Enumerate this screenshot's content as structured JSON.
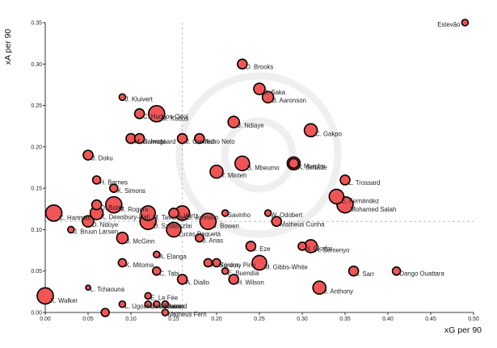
{
  "chart_data": {
    "type": "scatter",
    "title": "",
    "xlabel": "xG per 90",
    "ylabel": "xA per 90",
    "xlim": [
      0,
      0.5
    ],
    "ylim": [
      0,
      0.35
    ],
    "x_ticks": [
      "0.00",
      "0.05",
      "0.10",
      "0.15",
      "0.20",
      "0.25",
      "0.30",
      "0.35",
      "0.40",
      "0.45",
      "0.50"
    ],
    "y_ticks": [
      "0.00",
      "0.05",
      "0.10",
      "0.15",
      "0.20",
      "0.25",
      "0.30",
      "0.35"
    ],
    "reference_lines": {
      "x": 0.16,
      "y": 0.11
    },
    "colors": {
      "marker_fill": "#f05555",
      "marker_edge": "#000000",
      "reference_line": "#b5b5b5",
      "watermark": "#efefef"
    },
    "points": [
      {
        "name": "Estevão",
        "x": 0.49,
        "y": 0.35,
        "size": 4
      },
      {
        "name": "D. Brooks",
        "x": 0.23,
        "y": 0.3,
        "size": 6
      },
      {
        "name": "B. Saka",
        "x": 0.25,
        "y": 0.27,
        "size": 7
      },
      {
        "name": "B. Aaronson",
        "x": 0.26,
        "y": 0.26,
        "size": 7
      },
      {
        "name": "J. Kluivert",
        "x": 0.09,
        "y": 0.26,
        "size": 4
      },
      {
        "name": "C. Hudson-Odoi",
        "x": 0.11,
        "y": 0.24,
        "size": 6
      },
      {
        "name": "M. Kudus",
        "x": 0.13,
        "y": 0.24,
        "size": 10
      },
      {
        "name": "J. Ndiaye",
        "x": 0.22,
        "y": 0.23,
        "size": 7
      },
      {
        "name": "C. Gakpo",
        "x": 0.31,
        "y": 0.22,
        "size": 8
      },
      {
        "name": "M. Damsgaard",
        "x": 0.1,
        "y": 0.21,
        "size": 6
      },
      {
        "name": "A. Iwobi",
        "x": 0.11,
        "y": 0.21,
        "size": 6
      },
      {
        "name": "J. Grealish",
        "x": 0.16,
        "y": 0.21,
        "size": 6
      },
      {
        "name": "Pedro Neto",
        "x": 0.18,
        "y": 0.21,
        "size": 6
      },
      {
        "name": "J. Doku",
        "x": 0.05,
        "y": 0.19,
        "size": 6
      },
      {
        "name": "J. Murphy",
        "x": 0.29,
        "y": 0.18,
        "size": 6
      },
      {
        "name": "B. Mbeumo",
        "x": 0.23,
        "y": 0.18,
        "size": 9
      },
      {
        "name": "K. Schade",
        "x": 0.29,
        "y": 0.18,
        "size": 8
      },
      {
        "name": "Y. Minteh",
        "x": 0.2,
        "y": 0.17,
        "size": 8
      },
      {
        "name": "H. Barnes",
        "x": 0.06,
        "y": 0.16,
        "size": 5
      },
      {
        "name": "L. Trossard",
        "x": 0.35,
        "y": 0.16,
        "size": 6
      },
      {
        "name": "X. Simons",
        "x": 0.08,
        "y": 0.15,
        "size": 5
      },
      {
        "name": "E. Fernández",
        "x": 0.34,
        "y": 0.14,
        "size": 9
      },
      {
        "name": "O. Bobb",
        "x": 0.06,
        "y": 0.13,
        "size": 6
      },
      {
        "name": "Mohamed Salah",
        "x": 0.35,
        "y": 0.13,
        "size": 10
      },
      {
        "name": "M. Rogers",
        "x": 0.08,
        "y": 0.13,
        "size": 10
      },
      {
        "name": "F. Wirtz",
        "x": 0.15,
        "y": 0.12,
        "size": 6
      },
      {
        "name": "Savinho",
        "x": 0.21,
        "y": 0.12,
        "size": 4
      },
      {
        "name": "C. Hartman",
        "x": 0.01,
        "y": 0.12,
        "size": 10
      },
      {
        "name": "K. Dewsbury-Hall",
        "x": 0.06,
        "y": 0.12,
        "size": 8
      },
      {
        "name": "M. Tavernier",
        "x": 0.12,
        "y": 0.12,
        "size": 9
      },
      {
        "name": "B. Johnson",
        "x": 0.16,
        "y": 0.12,
        "size": 9
      },
      {
        "name": "W. Odobert",
        "x": 0.26,
        "y": 0.12,
        "size": 4
      },
      {
        "name": "D. Ndoye",
        "x": 0.05,
        "y": 0.11,
        "size": 7
      },
      {
        "name": "D. Szoboszlai",
        "x": 0.12,
        "y": 0.11,
        "size": 10
      },
      {
        "name": "J. Bowen",
        "x": 0.19,
        "y": 0.11,
        "size": 10
      },
      {
        "name": "Matheus Cunha",
        "x": 0.27,
        "y": 0.11,
        "size": 6
      },
      {
        "name": "J. Bruun Larsen",
        "x": 0.03,
        "y": 0.1,
        "size": 4
      },
      {
        "name": "Lucas Paquetá",
        "x": 0.15,
        "y": 0.1,
        "size": 9
      },
      {
        "name": "J. McGinn",
        "x": 0.09,
        "y": 0.09,
        "size": 7
      },
      {
        "name": "J. Arias",
        "x": 0.18,
        "y": 0.09,
        "size": 5
      },
      {
        "name": "N. Okafor",
        "x": 0.3,
        "y": 0.08,
        "size": 5
      },
      {
        "name": "I. Eze",
        "x": 0.24,
        "y": 0.08,
        "size": 6
      },
      {
        "name": "A. Semenyo",
        "x": 0.31,
        "y": 0.08,
        "size": 8
      },
      {
        "name": "A. Elanga",
        "x": 0.13,
        "y": 0.07,
        "size": 4
      },
      {
        "name": "A. Gordon",
        "x": 0.19,
        "y": 0.06,
        "size": 5
      },
      {
        "name": "K. Mitoma",
        "x": 0.09,
        "y": 0.06,
        "size": 5
      },
      {
        "name": "Yéremy Pino",
        "x": 0.2,
        "y": 0.06,
        "size": 5
      },
      {
        "name": "M. Gibbs-White",
        "x": 0.25,
        "y": 0.06,
        "size": 9
      },
      {
        "name": "I. Sarr",
        "x": 0.36,
        "y": 0.05,
        "size": 6
      },
      {
        "name": "Dango Ouattara",
        "x": 0.41,
        "y": 0.05,
        "size": 5
      },
      {
        "name": "E. Buendía",
        "x": 0.21,
        "y": 0.05,
        "size": 4
      },
      {
        "name": "C. Tabi",
        "x": 0.13,
        "y": 0.05,
        "size": 5
      },
      {
        "name": "A. Diallo",
        "x": 0.16,
        "y": 0.04,
        "size": 6
      },
      {
        "name": "H. Wilson",
        "x": 0.22,
        "y": 0.04,
        "size": 6
      },
      {
        "name": "L. Tchaouna",
        "x": 0.05,
        "y": 0.03,
        "size": 3
      },
      {
        "name": "J. Anthony",
        "x": 0.32,
        "y": 0.03,
        "size": 8
      },
      {
        "name": "K. Walker",
        "x": 0.0,
        "y": 0.02,
        "size": 10
      },
      {
        "name": "E. Le Fée",
        "x": 0.12,
        "y": 0.02,
        "size": 4
      },
      {
        "name": "L. Ugochukwu",
        "x": 0.09,
        "y": 0.01,
        "size": 4
      },
      {
        "name": "I. Diarra",
        "x": 0.13,
        "y": 0.01,
        "size": 4
      },
      {
        "name": "E. Guessand",
        "x": 0.12,
        "y": 0.01,
        "size": 4
      },
      {
        "name": "Jaime",
        "x": 0.14,
        "y": 0.01,
        "size": 4
      },
      {
        "name": "Matheus Fern",
        "x": 0.14,
        "y": 0.0,
        "size": 4
      },
      {
        "name": "",
        "x": 0.07,
        "y": 0.0,
        "size": 5
      }
    ]
  }
}
